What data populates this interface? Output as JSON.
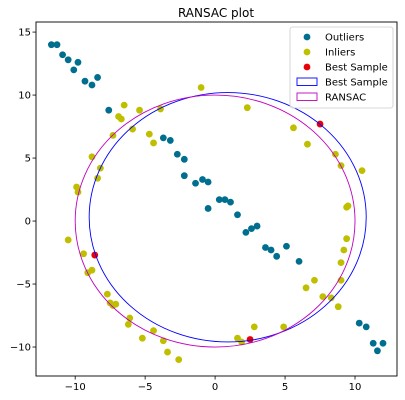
{
  "chart_data": {
    "type": "scatter",
    "title": "RANSAC plot",
    "xlabel": "",
    "ylabel": "",
    "xlim": [
      -12.8,
      13.0
    ],
    "ylim": [
      -12.3,
      15.8
    ],
    "xticks": [
      -10,
      -5,
      0,
      5,
      10
    ],
    "yticks": [
      -10,
      -5,
      0,
      5,
      10,
      15
    ],
    "grid": false,
    "legend_position": "top-right",
    "series": [
      {
        "name": "Outliers",
        "kind": "points",
        "color": "#006f8f",
        "points": [
          [
            -11.7,
            14.0
          ],
          [
            -11.3,
            14.0
          ],
          [
            -10.9,
            13.2
          ],
          [
            -10.5,
            12.8
          ],
          [
            -10.1,
            12.0
          ],
          [
            -9.8,
            12.6
          ],
          [
            -9.3,
            11.1
          ],
          [
            -8.8,
            10.8
          ],
          [
            -8.4,
            11.4
          ],
          [
            -7.6,
            8.8
          ],
          [
            -3.7,
            6.6
          ],
          [
            -3.2,
            6.4
          ],
          [
            -2.7,
            5.3
          ],
          [
            -2.2,
            4.9
          ],
          [
            -2.2,
            3.6
          ],
          [
            -1.4,
            3.0
          ],
          [
            -0.9,
            3.3
          ],
          [
            -0.5,
            3.1
          ],
          [
            -0.5,
            1.0
          ],
          [
            0.3,
            1.7
          ],
          [
            0.7,
            1.7
          ],
          [
            1.1,
            1.5
          ],
          [
            1.6,
            0.5
          ],
          [
            2.2,
            -0.9
          ],
          [
            2.6,
            -0.6
          ],
          [
            3.0,
            -0.4
          ],
          [
            3.6,
            -2.1
          ],
          [
            4.0,
            -2.3
          ],
          [
            4.4,
            -2.8
          ],
          [
            5.1,
            -2.0
          ],
          [
            6.0,
            -3.2
          ],
          [
            10.3,
            -8.1
          ],
          [
            10.8,
            -8.4
          ],
          [
            11.3,
            -9.7
          ],
          [
            11.6,
            -10.3
          ],
          [
            12.0,
            -9.7
          ]
        ]
      },
      {
        "name": "Inliers",
        "kind": "points",
        "color": "#bfbf00",
        "points": [
          [
            -10.5,
            -1.5
          ],
          [
            -9.9,
            2.7
          ],
          [
            -9.8,
            2.3
          ],
          [
            -9.4,
            -2.6
          ],
          [
            -9.1,
            -4.1
          ],
          [
            -8.8,
            -3.9
          ],
          [
            -8.8,
            5.1
          ],
          [
            -8.4,
            3.4
          ],
          [
            -8.2,
            4.2
          ],
          [
            -7.7,
            -5.8
          ],
          [
            -7.5,
            -6.5
          ],
          [
            -7.3,
            6.8
          ],
          [
            -7.3,
            -6.7
          ],
          [
            -7.1,
            -6.6
          ],
          [
            -6.9,
            8.3
          ],
          [
            -6.7,
            8.1
          ],
          [
            -6.5,
            9.2
          ],
          [
            -6.2,
            -8.2
          ],
          [
            -6.1,
            -7.7
          ],
          [
            -5.9,
            7.3
          ],
          [
            -5.4,
            8.8
          ],
          [
            -5.2,
            -9.3
          ],
          [
            -4.7,
            6.9
          ],
          [
            -4.4,
            6.2
          ],
          [
            -4.4,
            -8.7
          ],
          [
            -3.9,
            8.9
          ],
          [
            -3.7,
            -9.5
          ],
          [
            -3.4,
            -10.4
          ],
          [
            -2.6,
            -11.0
          ],
          [
            -1.0,
            10.6
          ],
          [
            1.6,
            -9.3
          ],
          [
            1.9,
            -9.6
          ],
          [
            2.3,
            9.0
          ],
          [
            2.8,
            -8.4
          ],
          [
            4.9,
            -8.4
          ],
          [
            5.6,
            7.4
          ],
          [
            6.6,
            6.1
          ],
          [
            6.5,
            -5.3
          ],
          [
            7.1,
            -4.7
          ],
          [
            7.7,
            -6.0
          ],
          [
            8.3,
            -6.1
          ],
          [
            8.6,
            5.3
          ],
          [
            8.8,
            -6.8
          ],
          [
            9.0,
            4.4
          ],
          [
            9.0,
            -3.3
          ],
          [
            9.0,
            -4.7
          ],
          [
            9.4,
            1.1
          ],
          [
            9.5,
            1.2
          ],
          [
            9.4,
            -1.4
          ],
          [
            9.2,
            -2.3
          ],
          [
            10.5,
            4.0
          ]
        ]
      },
      {
        "name": "Best Sample",
        "kind": "points",
        "color": "#e8000b",
        "points": [
          [
            -8.6,
            -2.7
          ],
          [
            7.5,
            7.7
          ],
          [
            2.5,
            -9.4
          ]
        ]
      },
      {
        "name": "Best Sample",
        "kind": "circle",
        "color": "#0000ff",
        "center": [
          0.9,
          0.3
        ],
        "radius": 9.9
      },
      {
        "name": "RANSAC",
        "kind": "circle",
        "color": "#c000c0",
        "center": [
          0.0,
          0.0
        ],
        "radius": 10.0
      }
    ]
  }
}
